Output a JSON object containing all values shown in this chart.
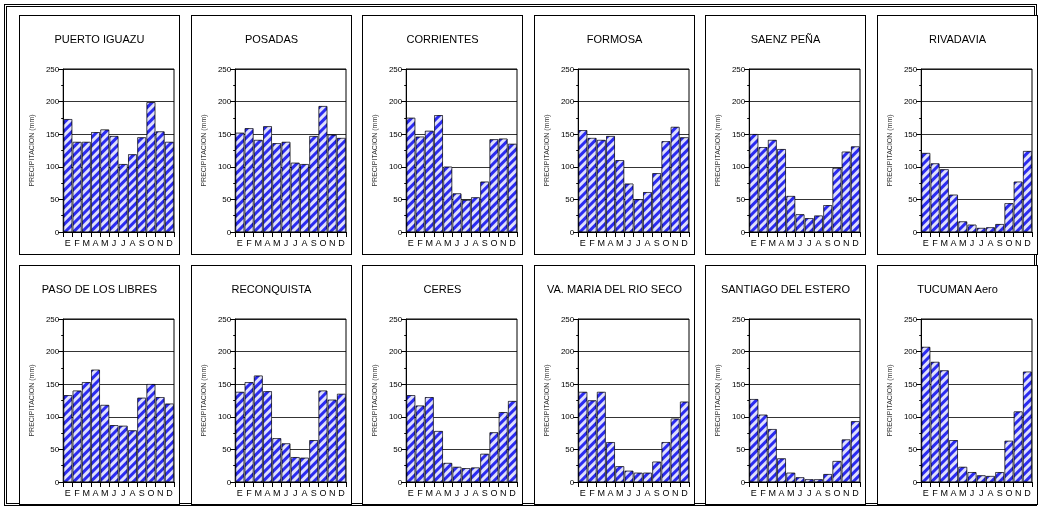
{
  "chart_data": [
    {
      "type": "bar",
      "title": "PUERTO IGUAZU",
      "ylabel": "PRECIPITACION (mm)",
      "categories": [
        "E",
        "F",
        "M",
        "A",
        "M",
        "J",
        "J",
        "A",
        "S",
        "O",
        "N",
        "D"
      ],
      "color": "#2b2bf0",
      "values": [
        173,
        138,
        138,
        153,
        157,
        147,
        104,
        119,
        145,
        199,
        154,
        138
      ],
      "ylim": [
        0,
        250
      ],
      "yticks": [
        0,
        50,
        100,
        150,
        200,
        250
      ],
      "grid": "y"
    },
    {
      "type": "bar",
      "title": "POSADAS",
      "ylabel": "PRECIPITACION (mm)",
      "categories": [
        "E",
        "F",
        "M",
        "A",
        "M",
        "J",
        "J",
        "A",
        "S",
        "O",
        "N",
        "D"
      ],
      "color": "#2b2bf0",
      "values": [
        152,
        159,
        141,
        162,
        136,
        138,
        106,
        104,
        147,
        193,
        149,
        144
      ],
      "ylim": [
        0,
        250
      ],
      "yticks": [
        0,
        50,
        100,
        150,
        200,
        250
      ],
      "grid": "y"
    },
    {
      "type": "bar",
      "title": "CORRIENTES",
      "ylabel": "PRECIPITACION (mm)",
      "categories": [
        "E",
        "F",
        "M",
        "A",
        "M",
        "J",
        "J",
        "A",
        "S",
        "O",
        "N",
        "D"
      ],
      "color": "#2b2bf0",
      "values": [
        175,
        146,
        155,
        179,
        100,
        59,
        49,
        53,
        77,
        142,
        143,
        135
      ],
      "ylim": [
        0,
        250
      ],
      "yticks": [
        0,
        50,
        100,
        150,
        200,
        250
      ],
      "grid": "y"
    },
    {
      "type": "bar",
      "title": "FORMOSA",
      "ylabel": "PRECIPITACION (mm)",
      "categories": [
        "E",
        "F",
        "M",
        "A",
        "M",
        "J",
        "J",
        "A",
        "S",
        "O",
        "N",
        "D"
      ],
      "color": "#2b2bf0",
      "values": [
        156,
        144,
        141,
        147,
        110,
        74,
        50,
        61,
        90,
        139,
        161,
        145
      ],
      "ylim": [
        0,
        250
      ],
      "yticks": [
        0,
        50,
        100,
        150,
        200,
        250
      ],
      "grid": "y"
    },
    {
      "type": "bar",
      "title": "SAENZ PEÑA",
      "ylabel": "PRECIPITACION (mm)",
      "categories": [
        "E",
        "F",
        "M",
        "A",
        "M",
        "J",
        "J",
        "A",
        "S",
        "O",
        "N",
        "D"
      ],
      "color": "#2b2bf0",
      "values": [
        150,
        130,
        141,
        127,
        55,
        27,
        21,
        25,
        41,
        98,
        123,
        131
      ],
      "ylim": [
        0,
        250
      ],
      "yticks": [
        0,
        50,
        100,
        150,
        200,
        250
      ],
      "grid": "y"
    },
    {
      "type": "bar",
      "title": "RIVADAVIA",
      "ylabel": "PRECIPITACION (mm)",
      "categories": [
        "E",
        "F",
        "M",
        "A",
        "M",
        "J",
        "J",
        "A",
        "S",
        "O",
        "N",
        "D"
      ],
      "color": "#2b2bf0",
      "values": [
        121,
        105,
        96,
        57,
        16,
        11,
        6,
        7,
        12,
        44,
        77,
        124
      ],
      "ylim": [
        0,
        250
      ],
      "yticks": [
        0,
        50,
        100,
        150,
        200,
        250
      ],
      "grid": "y"
    },
    {
      "type": "bar",
      "title": "PASO DE LOS LIBRES",
      "ylabel": "PRECIPITACION (mm)",
      "categories": [
        "E",
        "F",
        "M",
        "A",
        "M",
        "J",
        "J",
        "A",
        "S",
        "O",
        "N",
        "D"
      ],
      "color": "#2b2bf0",
      "values": [
        133,
        140,
        153,
        172,
        118,
        87,
        86,
        79,
        129,
        150,
        130,
        120
      ],
      "ylim": [
        0,
        250
      ],
      "yticks": [
        0,
        50,
        100,
        150,
        200,
        250
      ],
      "grid": "y"
    },
    {
      "type": "bar",
      "title": "RECONQUISTA",
      "ylabel": "PRECIPITACION (mm)",
      "categories": [
        "E",
        "F",
        "M",
        "A",
        "M",
        "J",
        "J",
        "A",
        "S",
        "O",
        "N",
        "D"
      ],
      "color": "#2b2bf0",
      "values": [
        138,
        153,
        163,
        139,
        67,
        59,
        38,
        37,
        64,
        140,
        126,
        135
      ],
      "ylim": [
        0,
        250
      ],
      "yticks": [
        0,
        50,
        100,
        150,
        200,
        250
      ],
      "grid": "y"
    },
    {
      "type": "bar",
      "title": "CERES",
      "ylabel": "PRECIPITACION (mm)",
      "categories": [
        "E",
        "F",
        "M",
        "A",
        "M",
        "J",
        "J",
        "A",
        "S",
        "O",
        "N",
        "D"
      ],
      "color": "#2b2bf0",
      "values": [
        133,
        117,
        130,
        78,
        29,
        23,
        21,
        22,
        43,
        76,
        107,
        124
      ],
      "ylim": [
        0,
        250
      ],
      "yticks": [
        0,
        50,
        100,
        150,
        200,
        250
      ],
      "grid": "y"
    },
    {
      "type": "bar",
      "title": "VA. MARIA DEL RIO SECO",
      "ylabel": "PRECIPITACION (mm)",
      "categories": [
        "E",
        "F",
        "M",
        "A",
        "M",
        "J",
        "J",
        "A",
        "S",
        "O",
        "N",
        "D"
      ],
      "color": "#2b2bf0",
      "values": [
        138,
        125,
        138,
        61,
        24,
        17,
        14,
        14,
        31,
        61,
        97,
        123
      ],
      "ylim": [
        0,
        250
      ],
      "yticks": [
        0,
        50,
        100,
        150,
        200,
        250
      ],
      "grid": "y"
    },
    {
      "type": "bar",
      "title": "SANTIAGO DEL ESTERO",
      "ylabel": "PRECIPITACION (mm)",
      "categories": [
        "E",
        "F",
        "M",
        "A",
        "M",
        "J",
        "J",
        "A",
        "S",
        "O",
        "N",
        "D"
      ],
      "color": "#2b2bf0",
      "values": [
        127,
        103,
        81,
        36,
        14,
        7,
        4,
        4,
        12,
        32,
        65,
        93
      ],
      "ylim": [
        0,
        250
      ],
      "yticks": [
        0,
        50,
        100,
        150,
        200,
        250
      ],
      "grid": "y"
    },
    {
      "type": "bar",
      "title": "TUCUMAN Aero",
      "ylabel": "PRECIPITACION (mm)",
      "categories": [
        "E",
        "F",
        "M",
        "A",
        "M",
        "J",
        "J",
        "A",
        "S",
        "O",
        "N",
        "D"
      ],
      "color": "#2b2bf0",
      "values": [
        207,
        184,
        171,
        64,
        23,
        15,
        10,
        9,
        15,
        63,
        108,
        169
      ],
      "ylim": [
        0,
        250
      ],
      "yticks": [
        0,
        50,
        100,
        150,
        200,
        250
      ],
      "grid": "y"
    }
  ]
}
